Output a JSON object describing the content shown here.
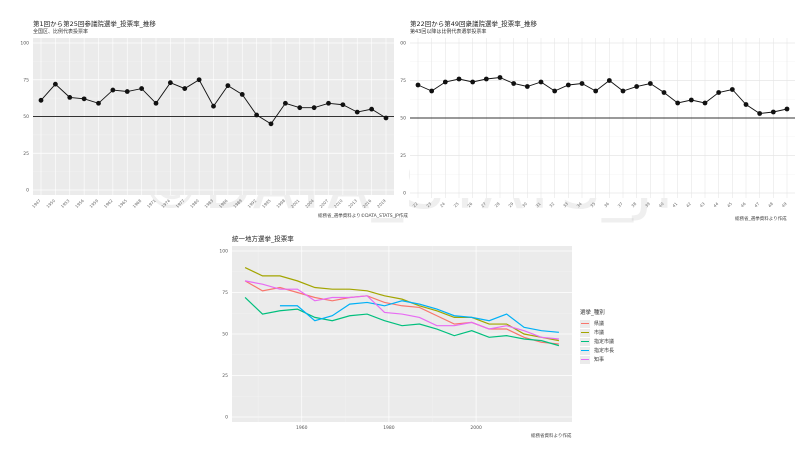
{
  "watermark": "©DATA_STATS_JP",
  "chart_data": [
    {
      "type": "line",
      "title": "第1回から第25回参議院選挙_投票率_推移",
      "subtitle": "全国区、比例代表投票率",
      "caption": "総務省_選挙資料より©DATA_STATS_JP作成",
      "ylim": [
        0,
        100
      ],
      "yticks": [
        "0",
        "25",
        "50",
        "75",
        "100"
      ],
      "reference_line": 50,
      "grid": true,
      "x": [
        "1947",
        "1950",
        "1953",
        "1956",
        "1959",
        "1962",
        "1965",
        "1968",
        "1971",
        "1974",
        "1977",
        "1980",
        "1983",
        "1986",
        "1989",
        "1992",
        "1995",
        "1998",
        "2001",
        "2004",
        "2007",
        "2010",
        "2013",
        "2016",
        "2019"
      ],
      "values": [
        61,
        72,
        63,
        62,
        59,
        68,
        67,
        69,
        59,
        73,
        69,
        75,
        57,
        71,
        65,
        51,
        45,
        59,
        56,
        56,
        59,
        58,
        53,
        55,
        49
      ]
    },
    {
      "type": "line",
      "title": "第22回から第49回衆議院選挙_投票率_推移",
      "subtitle": "第43回以降は比例代表選挙投票率",
      "caption": "総務省_選挙資料より作成",
      "ylim": [
        0,
        100
      ],
      "yticks": [
        "0",
        "25",
        "50",
        "75",
        "100"
      ],
      "reference_line": 50,
      "grid": true,
      "x": [
        "22",
        "23",
        "24",
        "25",
        "26",
        "27",
        "28",
        "29",
        "30",
        "31",
        "32",
        "33",
        "34",
        "35",
        "36",
        "37",
        "38",
        "39",
        "40",
        "41",
        "42",
        "43",
        "44",
        "45",
        "46",
        "47",
        "48",
        "49"
      ],
      "values": [
        72,
        68,
        74,
        76,
        74,
        76,
        77,
        73,
        71,
        74,
        68,
        72,
        73,
        68,
        75,
        68,
        71,
        73,
        67,
        60,
        62,
        60,
        67,
        69,
        59,
        53,
        54,
        56
      ]
    },
    {
      "type": "line",
      "title": "統一地方選挙_投票率",
      "caption": "総務省資料より作成",
      "ylim": [
        0,
        100
      ],
      "yticks": [
        "0",
        "25",
        "50",
        "75",
        "100"
      ],
      "xticks": [
        "1960",
        "1980",
        "2000"
      ],
      "legend_title": "選挙_種別",
      "legend_position": "right",
      "series": [
        {
          "name": "県議",
          "color": "#F8766D",
          "x": [
            1947,
            1951,
            1955,
            1959,
            1963,
            1967,
            1971,
            1975,
            1979,
            1983,
            1987,
            1991,
            1995,
            1999,
            2003,
            2007,
            2011,
            2015,
            2019
          ],
          "values": [
            82,
            76,
            78,
            75,
            72,
            70,
            72,
            73,
            69,
            67,
            66,
            61,
            56,
            57,
            53,
            53,
            48,
            45,
            44
          ]
        },
        {
          "name": "市議",
          "color": "#A3A500",
          "x": [
            1947,
            1951,
            1955,
            1959,
            1963,
            1967,
            1971,
            1975,
            1979,
            1983,
            1987,
            1991,
            1995,
            1999,
            2003,
            2007,
            2011,
            2015,
            2019
          ],
          "values": [
            90,
            85,
            85,
            82,
            78,
            77,
            77,
            76,
            73,
            71,
            67,
            64,
            60,
            60,
            56,
            56,
            50,
            48,
            46
          ]
        },
        {
          "name": "指定市議",
          "color": "#00BF7D",
          "x": [
            1947,
            1951,
            1955,
            1959,
            1963,
            1967,
            1971,
            1975,
            1979,
            1983,
            1987,
            1991,
            1995,
            1999,
            2003,
            2007,
            2011,
            2015,
            2019
          ],
          "values": [
            72,
            62,
            64,
            65,
            60,
            58,
            61,
            62,
            58,
            55,
            56,
            53,
            49,
            52,
            48,
            49,
            47,
            46,
            43
          ]
        },
        {
          "name": "指定市長",
          "color": "#00B0F6",
          "x": [
            1955,
            1959,
            1963,
            1967,
            1971,
            1975,
            1979,
            1983,
            1987,
            1991,
            1995,
            1999,
            2003,
            2007,
            2011,
            2015,
            2019
          ],
          "values": [
            67,
            67,
            58,
            61,
            68,
            69,
            67,
            70,
            68,
            65,
            61,
            60,
            58,
            62,
            54,
            52,
            51
          ]
        },
        {
          "name": "知事",
          "color": "#E76BF3",
          "x": [
            1947,
            1951,
            1955,
            1959,
            1963,
            1967,
            1971,
            1975,
            1979,
            1983,
            1987,
            1991,
            1995,
            1999,
            2003,
            2007,
            2011,
            2015,
            2019
          ],
          "values": [
            82,
            80,
            77,
            77,
            70,
            72,
            72,
            73,
            63,
            62,
            60,
            55,
            55,
            57,
            53,
            55,
            52,
            48,
            47
          ]
        }
      ]
    }
  ]
}
